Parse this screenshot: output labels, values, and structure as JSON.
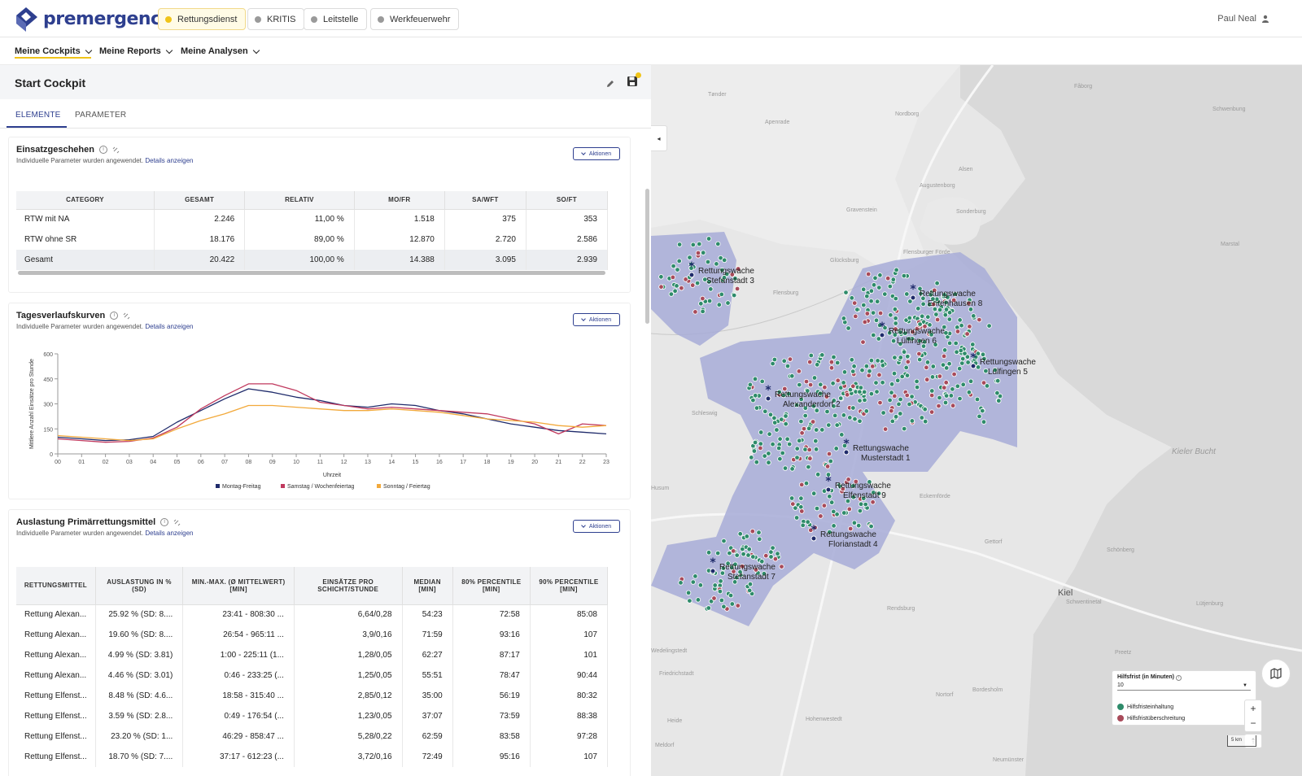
{
  "brand": {
    "name": "premergency"
  },
  "header": {
    "pills": [
      {
        "label": "Rettungsdienst",
        "active": true
      },
      {
        "label": "KRITIS",
        "active": false
      },
      {
        "label": "Leitstelle",
        "active": false
      },
      {
        "label": "Werkfeuerwehr",
        "active": false
      }
    ],
    "user": "Paul Neal"
  },
  "menu": [
    "Meine Cockpits",
    "Meine Reports",
    "Meine Analysen"
  ],
  "page": {
    "title": "Start Cockpit",
    "tabs": [
      "ELEMENTE",
      "PARAMETER"
    ]
  },
  "cards": {
    "einsatz": {
      "title": "Einsatzgeschehen",
      "sub": "Individuelle Parameter wurden angewendet.",
      "link": "Details anzeigen",
      "action": "Aktionen",
      "columns": [
        "CATEGORY",
        "GESAMT",
        "RELATIV",
        "MO/FR",
        "SA/WFT",
        "SO/FT"
      ],
      "rows": [
        [
          "RTW mit NA",
          "2.246",
          "11,00 %",
          "1.518",
          "375",
          "353"
        ],
        [
          "RTW ohne SR",
          "18.176",
          "89,00 %",
          "12.870",
          "2.720",
          "2.586"
        ],
        [
          "Gesamt",
          "20.422",
          "100,00 %",
          "14.388",
          "3.095",
          "2.939"
        ]
      ]
    },
    "tages": {
      "title": "Tagesverlaufskurven",
      "sub": "Individuelle Parameter wurden angewendet.",
      "link": "Details anzeigen",
      "action": "Aktionen"
    },
    "auslastung": {
      "title": "Auslastung Primärrettungsmittel",
      "sub": "Individuelle Parameter wurden angewendet.",
      "link": "Details anzeigen",
      "action": "Aktionen",
      "columns": [
        "RETTUNGSMITTEL",
        "AUSLASTUNG IN % (SD)",
        "MIN.-MAX. (Ø MITTELWERT) [MIN]",
        "EINSÄTZE PRO SCHICHT/STUNDE",
        "MEDIAN [MIN]",
        "80% PERCENTILE [MIN]",
        "90% PERCENTILE [MIN]"
      ],
      "rows": [
        [
          "Rettung Alexan...",
          "25.92 % (SD: 8....",
          "23:41 - 808:30 ...",
          "6,64/0,28",
          "54:23",
          "72:58",
          "85:08"
        ],
        [
          "Rettung Alexan...",
          "19.60 % (SD: 8....",
          "26:54 - 965:11 ...",
          "3,9/0,16",
          "71:59",
          "93:16",
          "107"
        ],
        [
          "Rettung Alexan...",
          "4.99 % (SD: 3.81)",
          "1:00 - 225:11 (1...",
          "1,28/0,05",
          "62:27",
          "87:17",
          "101"
        ],
        [
          "Rettung Alexan...",
          "4.46 % (SD: 3.01)",
          "0:46 - 233:25 (...",
          "1,25/0,05",
          "55:51",
          "78:47",
          "90:44"
        ],
        [
          "Rettung Elfenst...",
          "8.48 % (SD: 4.6...",
          "18:58 - 315:40 ...",
          "2,85/0,12",
          "35:00",
          "56:19",
          "80:32"
        ],
        [
          "Rettung Elfenst...",
          "3.59 % (SD: 2.8...",
          "0:49 - 176:54 (...",
          "1,23/0,05",
          "37:07",
          "73:59",
          "88:38"
        ],
        [
          "Rettung Elfenst...",
          "23.20 % (SD: 1...",
          "46:29 - 858:47 ...",
          "5,28/0,22",
          "62:59",
          "83:58",
          "97:28"
        ],
        [
          "Rettung Elfenst...",
          "18.70 % (SD: 7....",
          "37:17 - 612:23 (...",
          "3,72/0,16",
          "72:49",
          "95:16",
          "107"
        ]
      ]
    }
  },
  "chart_data": {
    "type": "line",
    "title": "",
    "xlabel": "Uhrzeit",
    "ylabel": "Mittlere Anzahl Einsätze pro Stunde",
    "ylim": [
      0,
      600
    ],
    "yticks": [
      "0",
      "150",
      "300",
      "450",
      "600"
    ],
    "x": [
      "00",
      "01",
      "02",
      "03",
      "04",
      "05",
      "06",
      "07",
      "08",
      "09",
      "10",
      "11",
      "12",
      "13",
      "14",
      "15",
      "16",
      "17",
      "18",
      "19",
      "20",
      "21",
      "22",
      "23"
    ],
    "legend_position": "bottom",
    "series": [
      {
        "name": "Montag-Freitag",
        "color": "#1f2b6b",
        "values": [
          100,
          90,
          80,
          85,
          105,
          190,
          260,
          330,
          390,
          370,
          340,
          320,
          290,
          280,
          300,
          290,
          260,
          240,
          210,
          180,
          160,
          140,
          130,
          120
        ]
      },
      {
        "name": "Samstag / Wochenfeiertag",
        "color": "#c0395e",
        "values": [
          90,
          80,
          70,
          75,
          95,
          160,
          270,
          350,
          420,
          420,
          380,
          310,
          290,
          270,
          280,
          270,
          260,
          250,
          240,
          210,
          180,
          120,
          180,
          170
        ]
      },
      {
        "name": "Sonntag / Feiertag",
        "color": "#f2a93b",
        "values": [
          110,
          100,
          90,
          80,
          90,
          150,
          200,
          240,
          290,
          290,
          280,
          270,
          260,
          260,
          270,
          260,
          250,
          230,
          210,
          200,
          190,
          170,
          160,
          170
        ]
      }
    ]
  },
  "map": {
    "legend_title": "Hilfsfrist (in Minuten)",
    "legend_value": "10",
    "legend_items": [
      {
        "label": "Hilfsfristeinhaltung",
        "color": "#2e8b6a"
      },
      {
        "label": "Hilfsfristüberschreitung",
        "color": "#a84a5a"
      }
    ],
    "scale": "5 km",
    "sea_label": "Kieler Bucht",
    "stations": [
      {
        "l1": "Rettungswache",
        "l2": "Stefanstadt 3"
      },
      {
        "l1": "Rettungswache",
        "l2": "Entenhausen 8"
      },
      {
        "l1": "Rettungswache",
        "l2": "Lülfingen 6"
      },
      {
        "l1": "Rettungswache",
        "l2": "Lülfingen 5"
      },
      {
        "l1": "Rettungswache",
        "l2": "Alexanderdorf 2"
      },
      {
        "l1": "Rettungswache",
        "l2": "Musterstadt 1"
      },
      {
        "l1": "Rettungswache",
        "l2": "Elfenstadt 9"
      },
      {
        "l1": "Rettungswache",
        "l2": "Florianstadt 4"
      },
      {
        "l1": "Rettungswache",
        "l2": "Stefanstadt 7"
      }
    ],
    "places": [
      "Flensburg",
      "Kiel",
      "Husum",
      "Rendsburg",
      "Sonderburg",
      "Alsen",
      "Glücksburg",
      "Eckernförde",
      "Schleswig",
      "Apenrade",
      "Nordborg",
      "Fåborg",
      "Schwenbung",
      "Marstal",
      "Gettorf",
      "Schönberg",
      "Lütjenburg",
      "Preetz",
      "Bordesholm",
      "Nortorf",
      "Hohenwestedt",
      "Neumünster",
      "Meldorf",
      "Heide",
      "Friedrichstadt",
      "Wedelingstedt",
      "Tønder",
      "Gravenstein",
      "Flensburger Förde",
      "Augustenborg",
      "Schwentinetal"
    ]
  }
}
